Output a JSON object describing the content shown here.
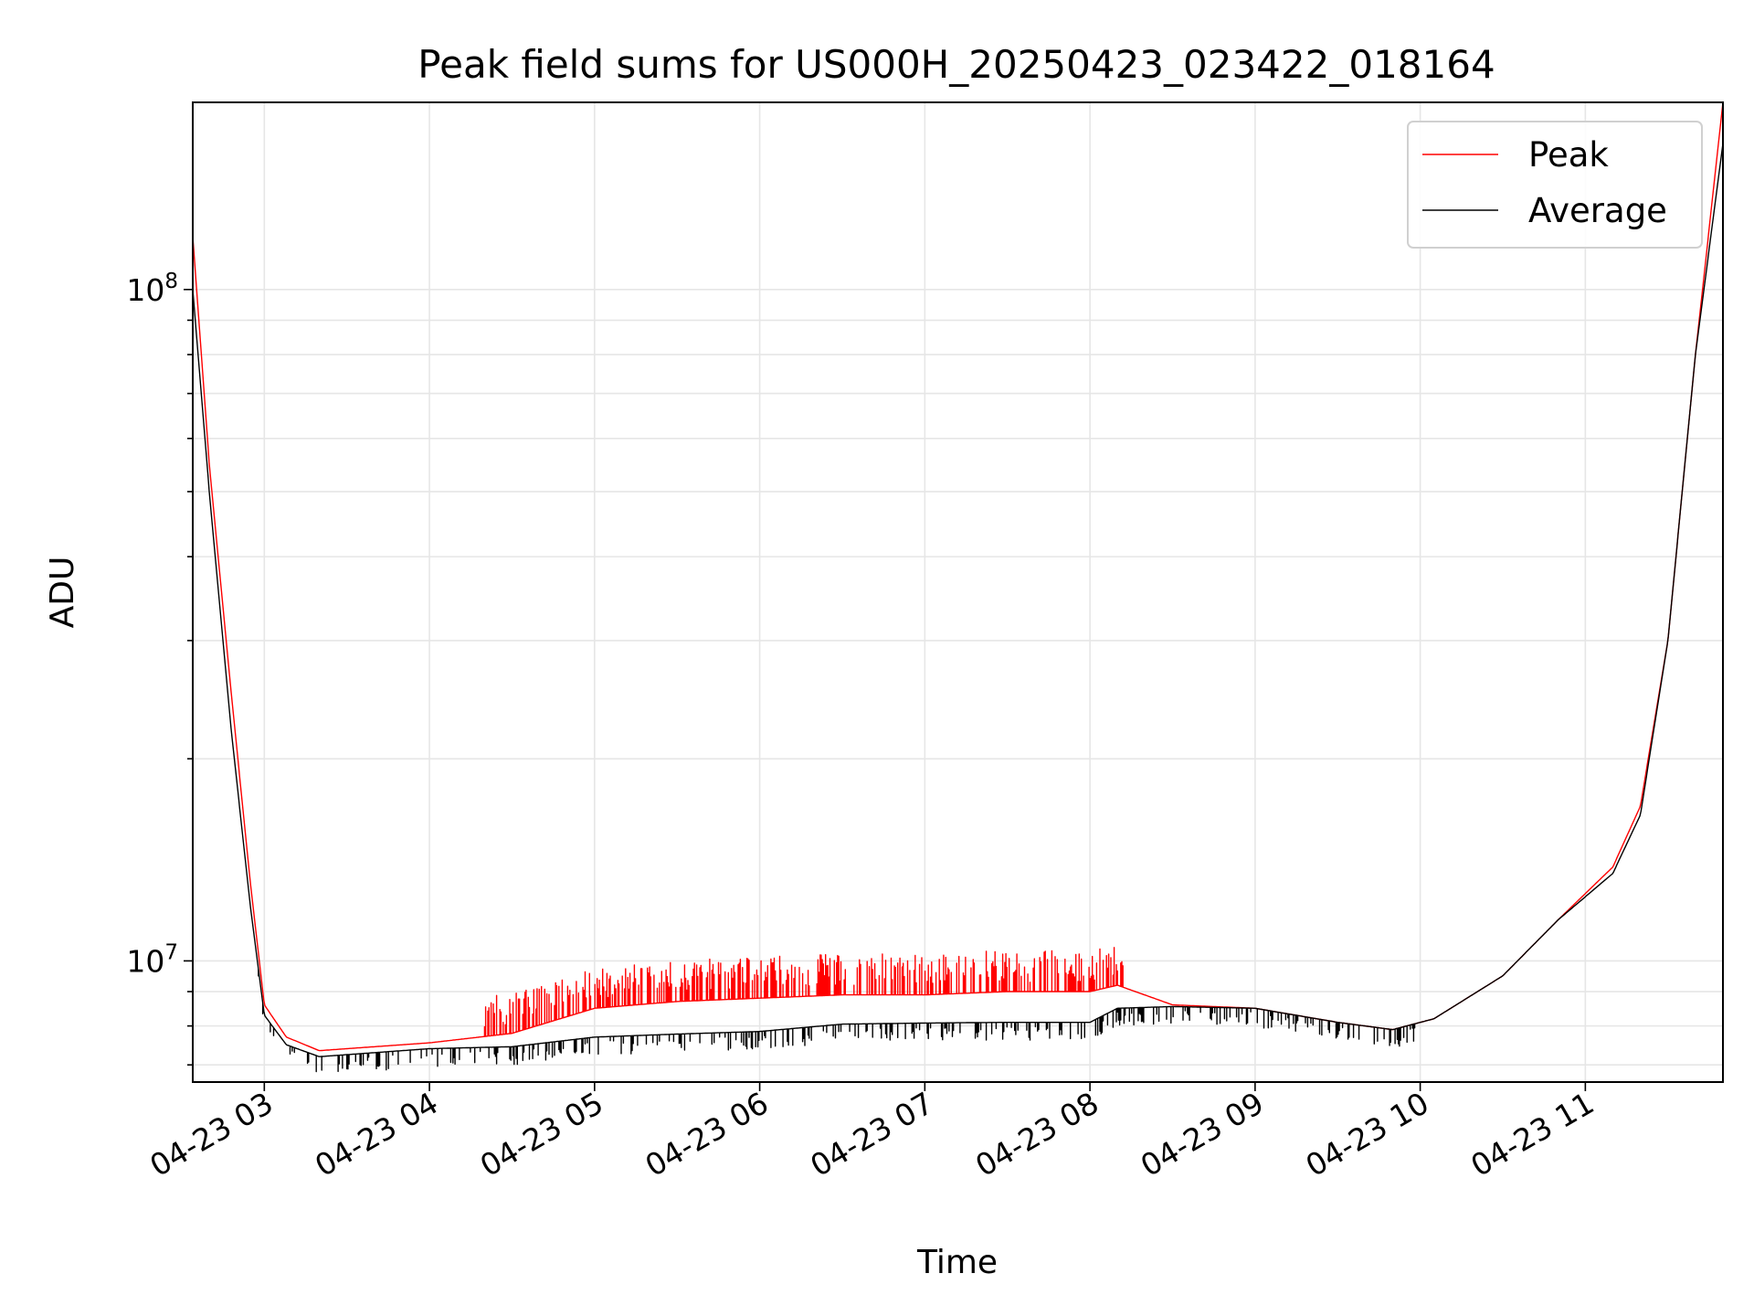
{
  "chart_data": {
    "type": "line",
    "title": "Peak field sums for US000H_20250423_023422_018164",
    "xlabel": "Time",
    "ylabel": "ADU",
    "yscale": "log",
    "xlim": [
      "2025-04-23 02:34",
      "2025-04-23 11:50"
    ],
    "ylim": [
      6600000,
      190000000
    ],
    "x_ticks": [
      "04-23 03",
      "04-23 04",
      "04-23 05",
      "04-23 06",
      "04-23 07",
      "04-23 08",
      "04-23 09",
      "04-23 10",
      "04-23 11"
    ],
    "y_major_ticks": [
      {
        "value": 10000000,
        "base": "10",
        "exp": "7"
      },
      {
        "value": 100000000,
        "base": "10",
        "exp": "8"
      }
    ],
    "grid": true,
    "legend_position": "top-right",
    "series": [
      {
        "name": "Peak",
        "color": "#ff0000",
        "x": [
          "2025-04-23 02:34",
          "2025-04-23 02:40",
          "2025-04-23 02:48",
          "2025-04-23 02:55",
          "2025-04-23 03:00",
          "2025-04-23 03:08",
          "2025-04-23 03:20",
          "2025-04-23 03:40",
          "2025-04-23 04:00",
          "2025-04-23 04:30",
          "2025-04-23 05:00",
          "2025-04-23 05:30",
          "2025-04-23 06:00",
          "2025-04-23 06:30",
          "2025-04-23 07:00",
          "2025-04-23 07:30",
          "2025-04-23 08:00",
          "2025-04-23 08:10",
          "2025-04-23 08:30",
          "2025-04-23 09:00",
          "2025-04-23 09:30",
          "2025-04-23 09:50",
          "2025-04-23 10:05",
          "2025-04-23 10:30",
          "2025-04-23 10:50",
          "2025-04-23 11:10",
          "2025-04-23 11:20",
          "2025-04-23 11:30",
          "2025-04-23 11:40",
          "2025-04-23 11:50"
        ],
        "y": [
          120000000,
          55000000,
          25000000,
          13000000,
          8600000,
          7700000,
          7350000,
          7450000,
          7550000,
          7800000,
          8500000,
          8700000,
          8800000,
          8900000,
          8900000,
          9000000,
          9000000,
          9200000,
          8600000,
          8500000,
          8100000,
          7900000,
          8200000,
          9500000,
          11500000,
          13800000,
          17000000,
          30000000,
          80000000,
          190000000
        ]
      },
      {
        "name": "Average",
        "color": "#000000",
        "x": [
          "2025-04-23 02:34",
          "2025-04-23 02:40",
          "2025-04-23 02:48",
          "2025-04-23 02:55",
          "2025-04-23 03:00",
          "2025-04-23 03:08",
          "2025-04-23 03:20",
          "2025-04-23 03:40",
          "2025-04-23 04:00",
          "2025-04-23 04:30",
          "2025-04-23 05:00",
          "2025-04-23 05:30",
          "2025-04-23 06:00",
          "2025-04-23 06:30",
          "2025-04-23 07:00",
          "2025-04-23 07:30",
          "2025-04-23 08:00",
          "2025-04-23 08:10",
          "2025-04-23 08:30",
          "2025-04-23 09:00",
          "2025-04-23 09:30",
          "2025-04-23 09:50",
          "2025-04-23 10:05",
          "2025-04-23 10:30",
          "2025-04-23 10:50",
          "2025-04-23 11:10",
          "2025-04-23 11:20",
          "2025-04-23 11:30",
          "2025-04-23 11:40",
          "2025-04-23 11:50"
        ],
        "y": [
          100000000,
          50000000,
          22000000,
          12000000,
          8300000,
          7500000,
          7200000,
          7300000,
          7400000,
          7450000,
          7700000,
          7780000,
          7850000,
          8050000,
          8080000,
          8100000,
          8100000,
          8500000,
          8550000,
          8500000,
          8100000,
          7900000,
          8200000,
          9500000,
          11500000,
          13500000,
          16500000,
          30000000,
          80000000,
          165000000
        ]
      }
    ]
  }
}
